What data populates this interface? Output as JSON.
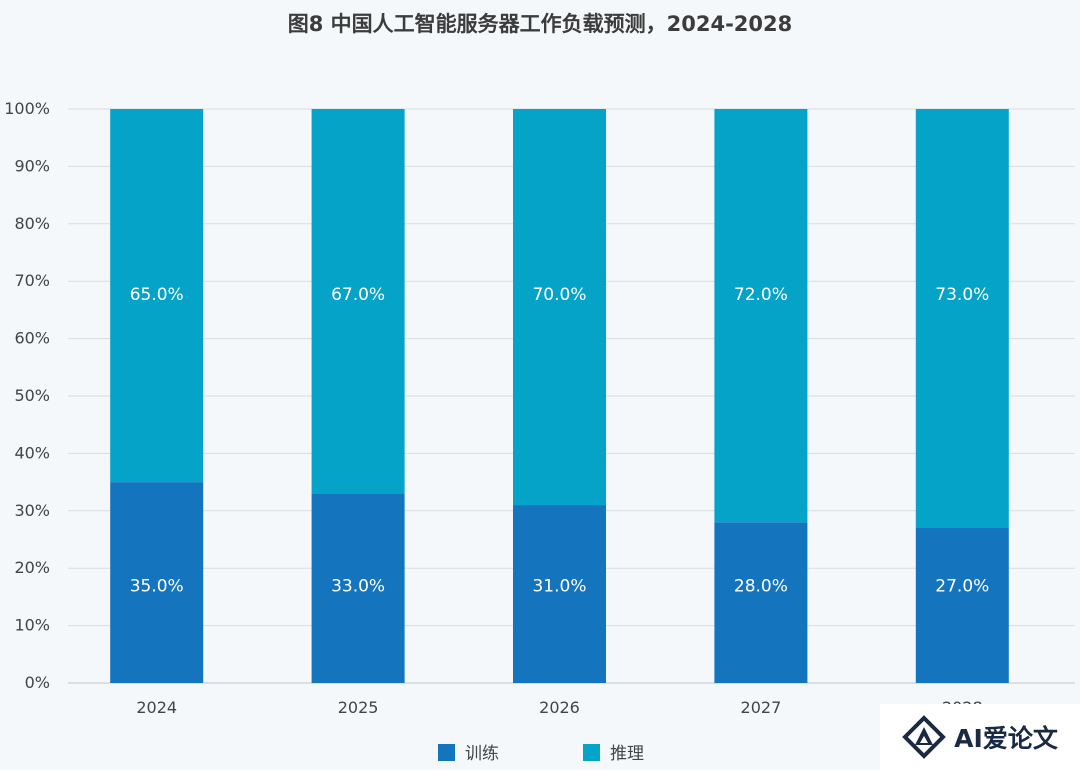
{
  "chart_data": {
    "type": "bar",
    "stacked": true,
    "title": "图8 中国人工智能服务器工作负载预测，2024-2028",
    "categories": [
      "2024",
      "2025",
      "2026",
      "2027",
      "2028"
    ],
    "series": [
      {
        "name": "训练",
        "color": "#1474bd",
        "values": [
          35.0,
          33.0,
          31.0,
          28.0,
          27.0
        ],
        "labels": [
          "35.0%",
          "33.0%",
          "31.0%",
          "28.0%",
          "27.0%"
        ]
      },
      {
        "name": "推理",
        "color": "#05a3c8",
        "values": [
          65.0,
          67.0,
          70.0,
          72.0,
          73.0
        ],
        "labels": [
          "65.0%",
          "67.0%",
          "70.0%",
          "72.0%",
          "73.0%"
        ]
      }
    ],
    "ylim": [
      0,
      100
    ],
    "yticks": [
      "0%",
      "10%",
      "20%",
      "30%",
      "40%",
      "50%",
      "60%",
      "70%",
      "80%",
      "90%",
      "100%"
    ],
    "grid": true,
    "legend_position": "bottom"
  },
  "watermark": {
    "text": "AI爱论文"
  }
}
